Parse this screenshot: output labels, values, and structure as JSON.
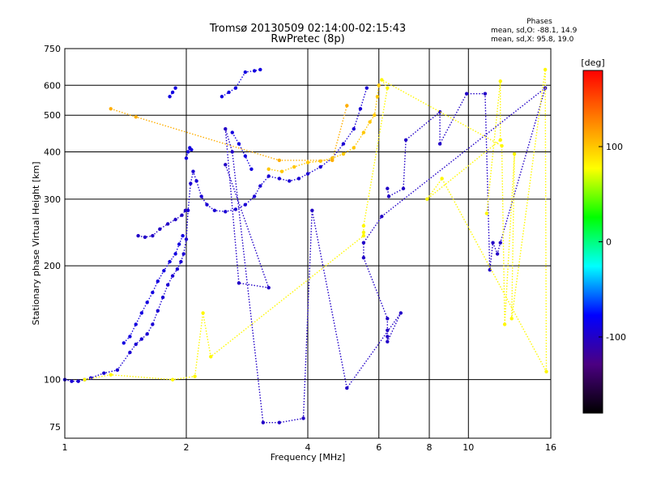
{
  "chart_data": {
    "type": "scatter",
    "title_line1": "Tromsø 20130509 02:14:00-02:15:43",
    "title_line2": "RwPretec (8p)",
    "xlabel": "Frequency [MHz]",
    "ylabel": "Stationary phase Virtual Height [km]",
    "xscale": "log",
    "yscale": "log",
    "xlim": [
      1,
      16
    ],
    "ylim": [
      70,
      750
    ],
    "x_ticks": [
      1,
      2,
      4,
      6,
      8,
      10,
      16
    ],
    "y_ticks": [
      75,
      100,
      200,
      300,
      400,
      500,
      600,
      750
    ],
    "grid": true,
    "phase_stats": {
      "header": "Phases",
      "line_o": "mean, sd,O: -88.1, 14.9",
      "line_x": "mean, sd,X:  95.8, 19.0"
    },
    "colorbar": {
      "label": "[deg]",
      "ticks": [
        100,
        0,
        -100
      ],
      "range": [
        -180,
        180
      ],
      "colors": [
        "#000000",
        "#4b0082",
        "#0000ff",
        "#00ffff",
        "#00ff00",
        "#ffff00",
        "#ff8000",
        "#ff0000"
      ]
    },
    "colors": {
      "o_mode": "#1f3fff",
      "x_mode": "#ffb000"
    },
    "traces": [
      {
        "mode": "O",
        "phase": -95,
        "points": [
          [
            1.0,
            100
          ],
          [
            1.04,
            99
          ],
          [
            1.08,
            99
          ],
          [
            1.12,
            100
          ],
          [
            1.16,
            101
          ],
          [
            1.25,
            104
          ],
          [
            1.35,
            106
          ],
          [
            1.45,
            118
          ],
          [
            1.5,
            124
          ],
          [
            1.55,
            128
          ],
          [
            1.6,
            132
          ],
          [
            1.65,
            140
          ],
          [
            1.7,
            152
          ],
          [
            1.75,
            165
          ],
          [
            1.8,
            178
          ],
          [
            1.85,
            188
          ],
          [
            1.9,
            196
          ],
          [
            1.94,
            205
          ],
          [
            1.97,
            215
          ],
          [
            2.0,
            235
          ],
          [
            2.02,
            280
          ],
          [
            2.05,
            330
          ],
          [
            2.08,
            355
          ],
          [
            2.12,
            335
          ],
          [
            2.18,
            305
          ],
          [
            2.25,
            290
          ],
          [
            2.35,
            280
          ],
          [
            2.5,
            278
          ],
          [
            2.65,
            282
          ],
          [
            2.8,
            290
          ],
          [
            2.95,
            305
          ],
          [
            3.05,
            325
          ],
          [
            3.2,
            345
          ],
          [
            3.4,
            340
          ],
          [
            3.6,
            335
          ],
          [
            3.8,
            340
          ],
          [
            4.0,
            350
          ],
          [
            4.3,
            365
          ],
          [
            4.6,
            385
          ],
          [
            4.9,
            420
          ],
          [
            5.2,
            460
          ],
          [
            5.4,
            520
          ],
          [
            5.6,
            590
          ]
        ]
      },
      {
        "mode": "O",
        "phase": -100,
        "points": [
          [
            1.52,
            240
          ],
          [
            1.58,
            238
          ],
          [
            1.65,
            240
          ],
          [
            1.72,
            250
          ],
          [
            1.8,
            258
          ],
          [
            1.88,
            265
          ],
          [
            1.95,
            272
          ],
          [
            1.99,
            280
          ]
        ]
      },
      {
        "mode": "O",
        "phase": -90,
        "points": [
          [
            1.4,
            125
          ],
          [
            1.45,
            130
          ],
          [
            1.5,
            140
          ],
          [
            1.55,
            150
          ],
          [
            1.6,
            160
          ],
          [
            1.65,
            170
          ],
          [
            1.7,
            182
          ],
          [
            1.76,
            194
          ],
          [
            1.82,
            205
          ],
          [
            1.88,
            215
          ],
          [
            1.92,
            228
          ],
          [
            1.96,
            240
          ]
        ]
      },
      {
        "mode": "O",
        "phase": -90,
        "points": [
          [
            2.0,
            385
          ],
          [
            2.02,
            400
          ],
          [
            2.04,
            410
          ],
          [
            2.06,
            405
          ]
        ]
      },
      {
        "mode": "O",
        "phase": -90,
        "points": [
          [
            1.82,
            560
          ],
          [
            1.85,
            575
          ],
          [
            1.88,
            590
          ]
        ]
      },
      {
        "mode": "O",
        "phase": -90,
        "points": [
          [
            2.45,
            560
          ],
          [
            2.55,
            575
          ],
          [
            2.65,
            590
          ],
          [
            2.8,
            650
          ],
          [
            2.95,
            655
          ],
          [
            3.05,
            660
          ]
        ]
      },
      {
        "mode": "O",
        "phase": -90,
        "points": [
          [
            2.6,
            450
          ],
          [
            2.7,
            420
          ],
          [
            2.8,
            390
          ],
          [
            2.9,
            360
          ]
        ]
      },
      {
        "mode": "X",
        "phase": 100,
        "points": [
          [
            3.2,
            360
          ],
          [
            3.45,
            355
          ],
          [
            3.7,
            365
          ],
          [
            4.0,
            375
          ],
          [
            4.3,
            378
          ],
          [
            4.6,
            385
          ],
          [
            4.9,
            395
          ],
          [
            5.2,
            410
          ],
          [
            5.5,
            450
          ],
          [
            5.7,
            480
          ],
          [
            5.85,
            500
          ],
          [
            5.95,
            560
          ],
          [
            6.0,
            600
          ]
        ]
      },
      {
        "mode": "X",
        "phase": 110,
        "points": [
          [
            1.3,
            520
          ],
          [
            1.5,
            495
          ],
          [
            3.4,
            380
          ],
          [
            4.6,
            380
          ],
          [
            5.0,
            530
          ]
        ]
      },
      {
        "mode": "N",
        "phase": -100,
        "points": [
          [
            6.3,
            320
          ],
          [
            6.35,
            305
          ],
          [
            6.9,
            320
          ],
          [
            7.0,
            430
          ],
          [
            8.5,
            510
          ],
          [
            8.5,
            420
          ],
          [
            9.9,
            570
          ],
          [
            11.0,
            570
          ],
          [
            11.3,
            195
          ],
          [
            11.5,
            230
          ],
          [
            11.8,
            215
          ],
          [
            12.0,
            230
          ],
          [
            15.5,
            590
          ],
          [
            6.1,
            270
          ],
          [
            5.5,
            230
          ],
          [
            5.5,
            210
          ],
          [
            6.3,
            145
          ],
          [
            6.3,
            135
          ],
          [
            6.3,
            130
          ],
          [
            6.3,
            126
          ],
          [
            6.8,
            150
          ],
          [
            5.0,
            95
          ],
          [
            4.1,
            280
          ],
          [
            3.9,
            79
          ],
          [
            3.4,
            77
          ],
          [
            3.1,
            77
          ],
          [
            2.6,
            400
          ],
          [
            2.5,
            460
          ],
          [
            2.7,
            180
          ],
          [
            3.2,
            175
          ],
          [
            2.5,
            370
          ]
        ]
      },
      {
        "mode": "X",
        "phase": 80,
        "points": [
          [
            1.12,
            100
          ],
          [
            1.3,
            103
          ],
          [
            1.85,
            100
          ],
          [
            2.1,
            102
          ],
          [
            2.2,
            150
          ],
          [
            2.3,
            115
          ],
          [
            5.5,
            240
          ],
          [
            5.5,
            245
          ],
          [
            5.5,
            255
          ],
          [
            6.3,
            590
          ],
          [
            6.1,
            620
          ],
          [
            12.1,
            415
          ],
          [
            12.3,
            140
          ],
          [
            13.0,
            395
          ],
          [
            12.8,
            145
          ],
          [
            15.5,
            660
          ],
          [
            15.6,
            105
          ],
          [
            8.6,
            340
          ],
          [
            7.9,
            300
          ],
          [
            12.0,
            430
          ],
          [
            12.0,
            615
          ],
          [
            11.1,
            275
          ]
        ]
      }
    ]
  }
}
